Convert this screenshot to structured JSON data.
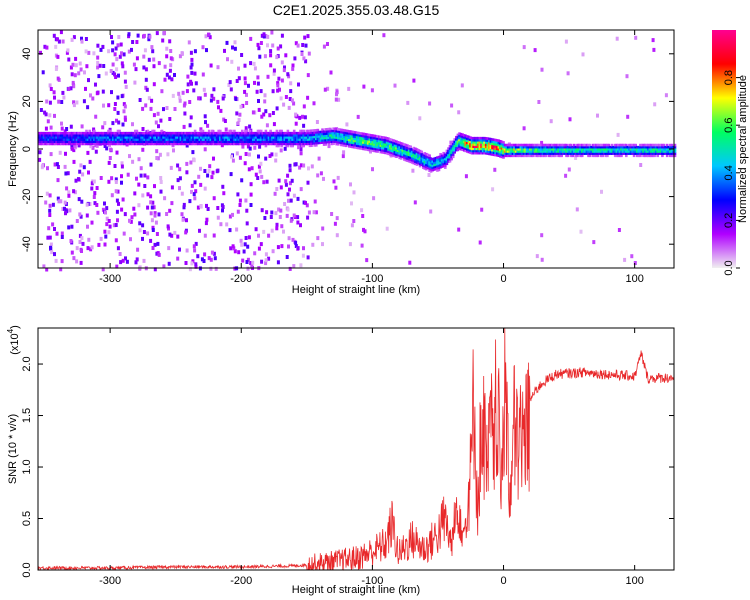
{
  "title": "C2E1.2025.355.03.48.G15",
  "chart_data": [
    {
      "type": "heatmap",
      "xlabel": "Height of straight line (km)",
      "ylabel": "Frequency (Hz)",
      "xlim": [
        -355,
        130
      ],
      "ylim": [
        -50,
        50
      ],
      "xticks": [
        -300,
        -200,
        -100,
        0,
        100
      ],
      "xtick_labels": [
        "-300",
        "-200",
        "-100",
        "0",
        "100"
      ],
      "yticks": [
        -40,
        -20,
        0,
        20,
        40
      ],
      "ytick_labels": [
        "-40",
        "-20",
        "0",
        "20",
        "40"
      ],
      "colorbar": {
        "label": "Normalized spectral amplitude",
        "range": [
          0,
          1
        ],
        "ticks": [
          0.0,
          0.2,
          0.4,
          0.6,
          0.8
        ],
        "tick_labels": [
          "0.0",
          "0.2",
          "0.4",
          "0.6",
          "0.8"
        ],
        "colors": [
          "#f0f0f0",
          "#b000ff",
          "#0000ff",
          "#00c8ff",
          "#00ff60",
          "#ffff00",
          "#ff0000",
          "#ff0090"
        ]
      },
      "ridge": {
        "x": [
          -355,
          -300,
          -250,
          -200,
          -150,
          -130,
          -110,
          -90,
          -70,
          -55,
          -45,
          -35,
          -25,
          -15,
          -5,
          0,
          20,
          60,
          130
        ],
        "y": [
          5,
          5,
          5,
          5,
          5,
          6,
          4,
          2,
          -2,
          -6,
          -4,
          4,
          2,
          2,
          1,
          0,
          0,
          0,
          0
        ],
        "amplitude": [
          0.3,
          0.35,
          0.35,
          0.35,
          0.4,
          0.5,
          0.6,
          0.55,
          0.5,
          0.45,
          0.4,
          0.6,
          0.8,
          0.85,
          0.8,
          0.7,
          0.55,
          0.5,
          0.5
        ]
      }
    },
    {
      "type": "line",
      "xlabel": "Height of straight line (km)",
      "ylabel": "SNR (10 * v/v)",
      "scale_label": "(x10",
      "scale_exponent": "4",
      "xlim": [
        -355,
        130
      ],
      "ylim": [
        0,
        2.35
      ],
      "xticks": [
        -300,
        -200,
        -100,
        0,
        100
      ],
      "xtick_labels": [
        "-300",
        "-200",
        "-100",
        "0",
        "100"
      ],
      "yticks": [
        0.0,
        0.5,
        1.0,
        1.5,
        2.0
      ],
      "ytick_labels": [
        "0.0",
        "0.5",
        "1.0",
        "1.5",
        "2.0"
      ],
      "series": [
        {
          "color": "#e8282a",
          "x": [
            -355,
            -300,
            -250,
            -200,
            -160,
            -150,
            -130,
            -110,
            -100,
            -90,
            -85,
            -80,
            -70,
            -60,
            -50,
            -45,
            -40,
            -35,
            -30,
            -25,
            -22,
            -20,
            -18,
            -15,
            -12,
            -10,
            -8,
            -5,
            -2,
            0,
            2,
            5,
            8,
            10,
            15,
            20,
            25,
            30,
            40,
            60,
            80,
            100,
            105,
            110,
            130
          ],
          "y": [
            0.02,
            0.02,
            0.03,
            0.03,
            0.04,
            0.05,
            0.08,
            0.12,
            0.18,
            0.25,
            0.45,
            0.15,
            0.3,
            0.2,
            0.35,
            0.5,
            0.25,
            0.8,
            0.4,
            1.1,
            2.15,
            0.6,
            1.3,
            1.6,
            1.0,
            1.8,
            1.2,
            2.05,
            0.9,
            1.5,
            2.3,
            0.7,
            1.6,
            1.45,
            1.55,
            1.65,
            1.75,
            1.82,
            1.9,
            1.92,
            1.9,
            1.88,
            2.1,
            1.86,
            1.87
          ]
        }
      ]
    }
  ]
}
